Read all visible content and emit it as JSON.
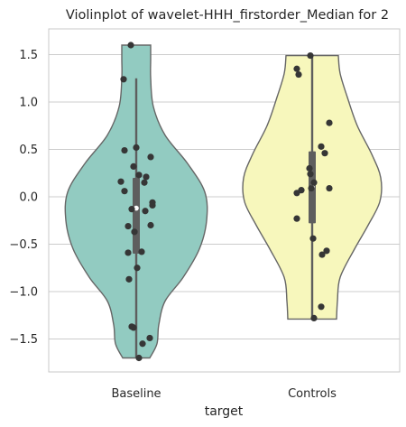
{
  "chart_data": {
    "type": "violin",
    "title": "Violinplot of wavelet-HHH_firstorder_Median for 2",
    "xlabel": "target",
    "ylabel": "",
    "categories": [
      "Baseline",
      "Controls"
    ],
    "ylim": [
      -1.85,
      1.78
    ],
    "yticks": [
      -1.5,
      -1.0,
      -0.5,
      0.0,
      0.5,
      1.0,
      1.5
    ],
    "ytick_labels": [
      "−1.5",
      "−1.0",
      "−0.5",
      "0.0",
      "0.5",
      "1.0",
      "1.5"
    ],
    "grid": true,
    "colors": {
      "Baseline": "#92CBC1",
      "Controls": "#F7F7BC",
      "violin_edge": "#666666",
      "box": "#5E5E5E",
      "points": "#363636",
      "grid": "#CCCCCC",
      "axes_edge": "#C8C8C8"
    },
    "series": [
      {
        "category": "Baseline",
        "whisker": [
          -1.7,
          1.25
        ],
        "box": [
          -0.6,
          0.2
        ],
        "median": -0.12,
        "violin": {
          "y": [
            -1.7,
            -1.55,
            -1.35,
            -1.1,
            -0.85,
            -0.55,
            -0.25,
            0.05,
            0.35,
            0.65,
            0.95,
            1.25,
            1.45,
            1.6
          ],
          "halfwidth": [
            0.15,
            0.23,
            0.25,
            0.32,
            0.52,
            0.7,
            0.78,
            0.76,
            0.57,
            0.32,
            0.19,
            0.16,
            0.16,
            0.16
          ]
        },
        "points": [
          {
            "x": -0.06,
            "y": 1.6
          },
          {
            "x": -0.14,
            "y": 1.24
          },
          {
            "x": 0.0,
            "y": 0.52
          },
          {
            "x": -0.13,
            "y": 0.49
          },
          {
            "x": 0.16,
            "y": 0.42
          },
          {
            "x": -0.03,
            "y": 0.32
          },
          {
            "x": 0.03,
            "y": 0.23
          },
          {
            "x": 0.11,
            "y": 0.21
          },
          {
            "x": -0.17,
            "y": 0.16
          },
          {
            "x": 0.09,
            "y": 0.15
          },
          {
            "x": -0.13,
            "y": 0.06
          },
          {
            "x": 0.18,
            "y": -0.06
          },
          {
            "x": 0.18,
            "y": -0.09
          },
          {
            "x": -0.05,
            "y": -0.13
          },
          {
            "x": 0.1,
            "y": -0.15
          },
          {
            "x": -0.09,
            "y": -0.31
          },
          {
            "x": 0.16,
            "y": -0.3
          },
          {
            "x": -0.02,
            "y": -0.37
          },
          {
            "x": 0.06,
            "y": -0.58
          },
          {
            "x": -0.09,
            "y": -0.59
          },
          {
            "x": 0.01,
            "y": -0.75
          },
          {
            "x": -0.08,
            "y": -0.87
          },
          {
            "x": -0.05,
            "y": -1.37
          },
          {
            "x": -0.03,
            "y": -1.38
          },
          {
            "x": 0.15,
            "y": -1.49
          },
          {
            "x": 0.07,
            "y": -1.55
          },
          {
            "x": 0.03,
            "y": -1.7
          }
        ]
      },
      {
        "category": "Controls",
        "whisker": [
          -1.28,
          1.49
        ],
        "box": [
          -0.28,
          0.48
        ],
        "median": 0.1,
        "violin": {
          "y": [
            -1.29,
            -1.1,
            -0.85,
            -0.55,
            -0.3,
            -0.05,
            0.2,
            0.45,
            0.75,
            1.05,
            1.3,
            1.49
          ],
          "halfwidth": [
            0.27,
            0.28,
            0.31,
            0.47,
            0.62,
            0.75,
            0.76,
            0.66,
            0.5,
            0.39,
            0.31,
            0.29
          ]
        },
        "points": [
          {
            "x": -0.02,
            "y": 1.49
          },
          {
            "x": -0.17,
            "y": 1.35
          },
          {
            "x": -0.15,
            "y": 1.29
          },
          {
            "x": 0.19,
            "y": 0.78
          },
          {
            "x": 0.1,
            "y": 0.53
          },
          {
            "x": 0.14,
            "y": 0.46
          },
          {
            "x": -0.03,
            "y": 0.3
          },
          {
            "x": -0.02,
            "y": 0.24
          },
          {
            "x": 0.02,
            "y": 0.15
          },
          {
            "x": -0.01,
            "y": 0.09
          },
          {
            "x": 0.19,
            "y": 0.09
          },
          {
            "x": -0.12,
            "y": 0.07
          },
          {
            "x": -0.17,
            "y": 0.04
          },
          {
            "x": -0.17,
            "y": -0.23
          },
          {
            "x": 0.01,
            "y": -0.44
          },
          {
            "x": 0.16,
            "y": -0.57
          },
          {
            "x": 0.11,
            "y": -0.61
          },
          {
            "x": 0.1,
            "y": -1.16
          },
          {
            "x": 0.02,
            "y": -1.28
          }
        ]
      }
    ]
  }
}
